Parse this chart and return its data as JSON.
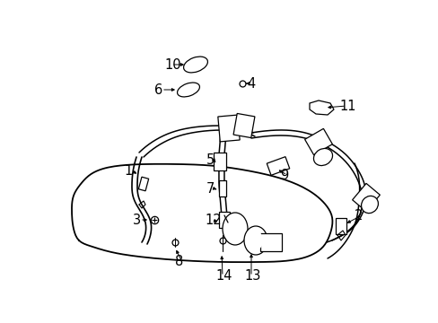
{
  "background_color": "#ffffff",
  "fig_width": 4.89,
  "fig_height": 3.6,
  "dpi": 100,
  "line_color": "#000000",
  "text_color": "#000000",
  "label_fontsize": 10.5
}
